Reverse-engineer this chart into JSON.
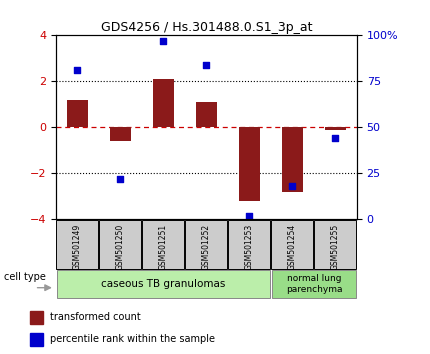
{
  "title": "GDS4256 / Hs.301488.0.S1_3p_at",
  "samples": [
    "GSM501249",
    "GSM501250",
    "GSM501251",
    "GSM501252",
    "GSM501253",
    "GSM501254",
    "GSM501255"
  ],
  "red_bars": [
    1.2,
    -0.6,
    2.1,
    1.1,
    -3.2,
    -2.8,
    -0.1
  ],
  "blue_pct": [
    81,
    22,
    97,
    84,
    2,
    18,
    44
  ],
  "ylim": [
    -4,
    4
  ],
  "yticks_left": [
    -4,
    -2,
    0,
    2,
    4
  ],
  "yticks_right_pct": [
    0,
    25,
    50,
    75,
    100
  ],
  "hlines": [
    2.0,
    -2.0
  ],
  "red_color": "#8B1A1A",
  "blue_color": "#0000CC",
  "dashed_color": "#CC0000",
  "group1_label": "caseous TB granulomas",
  "group2_label": "normal lung\nparenchyma",
  "group1_count": 5,
  "group2_count": 2,
  "cell_type_label": "cell type",
  "legend_red": "transformed count",
  "legend_blue": "percentile rank within the sample",
  "group1_color": "#BBEEAA",
  "group2_color": "#99DD88",
  "sample_box_color": "#CCCCCC",
  "tick_label_color_left": "#CC0000",
  "tick_label_color_right": "#0000CC",
  "bar_width": 0.5,
  "figwidth": 4.3,
  "figheight": 3.54,
  "dpi": 100
}
